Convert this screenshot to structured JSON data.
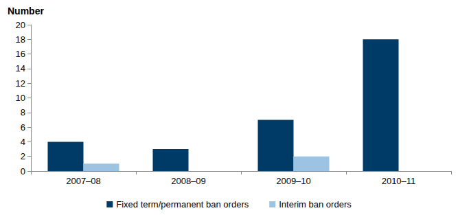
{
  "chart_data": {
    "type": "bar",
    "y_label": "Number",
    "categories": [
      "2007–08",
      "2008–09",
      "2009–10",
      "2010–11"
    ],
    "series": [
      {
        "name": "Fixed term/permanent ban orders",
        "color": "#003B68",
        "values": [
          4,
          3,
          7,
          18
        ]
      },
      {
        "name": "Interim ban orders",
        "color": "#9DC3E3",
        "values": [
          1,
          0,
          2,
          0
        ]
      }
    ],
    "ylim": [
      0,
      20
    ],
    "yticks": [
      0,
      2,
      4,
      6,
      8,
      10,
      12,
      14,
      16,
      18,
      20
    ],
    "grid": false,
    "legend": "bottom"
  }
}
